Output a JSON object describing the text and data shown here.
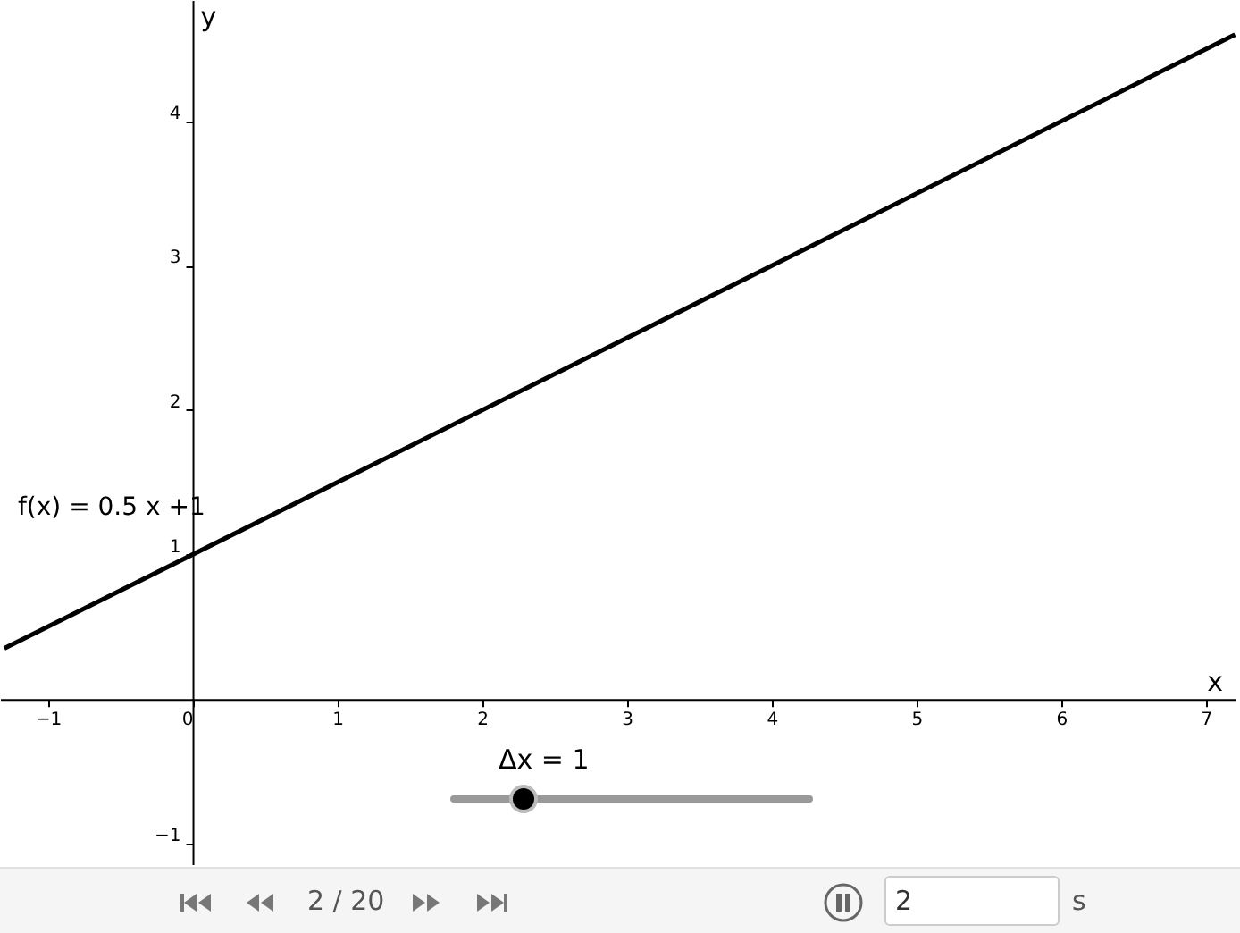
{
  "chart_data": {
    "type": "line",
    "xlabel": "x",
    "ylabel": "y",
    "x": [
      -1.3,
      7.2
    ],
    "series": [
      {
        "color": "#000000",
        "values": [
          0.35,
          4.6
        ]
      }
    ],
    "xlim": [
      -1.33,
      7.21
    ],
    "ylim": [
      -1.15,
      4.84
    ],
    "xticks": [
      -1,
      0,
      1,
      2,
      3,
      4,
      5,
      6,
      7
    ],
    "yticks": [
      -1,
      1,
      2,
      3,
      4
    ],
    "grid": false,
    "marker": "none",
    "line_style": "solid",
    "annotations": [
      "f(x) = 0.5 x +1",
      "Δx = 1",
      "2 / 20",
      "2",
      "s"
    ]
  }
}
